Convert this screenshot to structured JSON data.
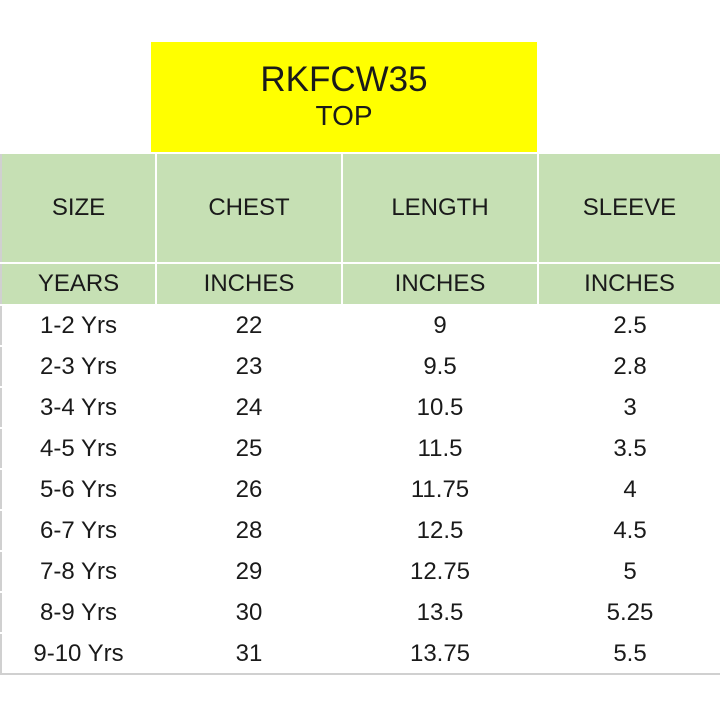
{
  "title": {
    "code": "RKFCW35",
    "subtitle": "TOP"
  },
  "colors": {
    "title_bg": "#ffff00",
    "header_bg": "#c6e0b4"
  },
  "headers": [
    "SIZE",
    "CHEST",
    "LENGTH",
    "SLEEVE"
  ],
  "units": [
    "YEARS",
    "INCHES",
    "INCHES",
    "INCHES"
  ],
  "rows": [
    [
      "1-2 Yrs",
      "22",
      "9",
      "2.5"
    ],
    [
      "2-3 Yrs",
      "23",
      "9.5",
      "2.8"
    ],
    [
      "3-4 Yrs",
      "24",
      "10.5",
      "3"
    ],
    [
      "4-5 Yrs",
      "25",
      "11.5",
      "3.5"
    ],
    [
      "5-6 Yrs",
      "26",
      "11.75",
      "4"
    ],
    [
      "6-7 Yrs",
      "28",
      "12.5",
      "4.5"
    ],
    [
      "7-8 Yrs",
      "29",
      "12.75",
      "5"
    ],
    [
      "8-9 Yrs",
      "30",
      "13.5",
      "5.25"
    ],
    [
      "9-10 Yrs",
      "31",
      "13.75",
      "5.5"
    ]
  ]
}
